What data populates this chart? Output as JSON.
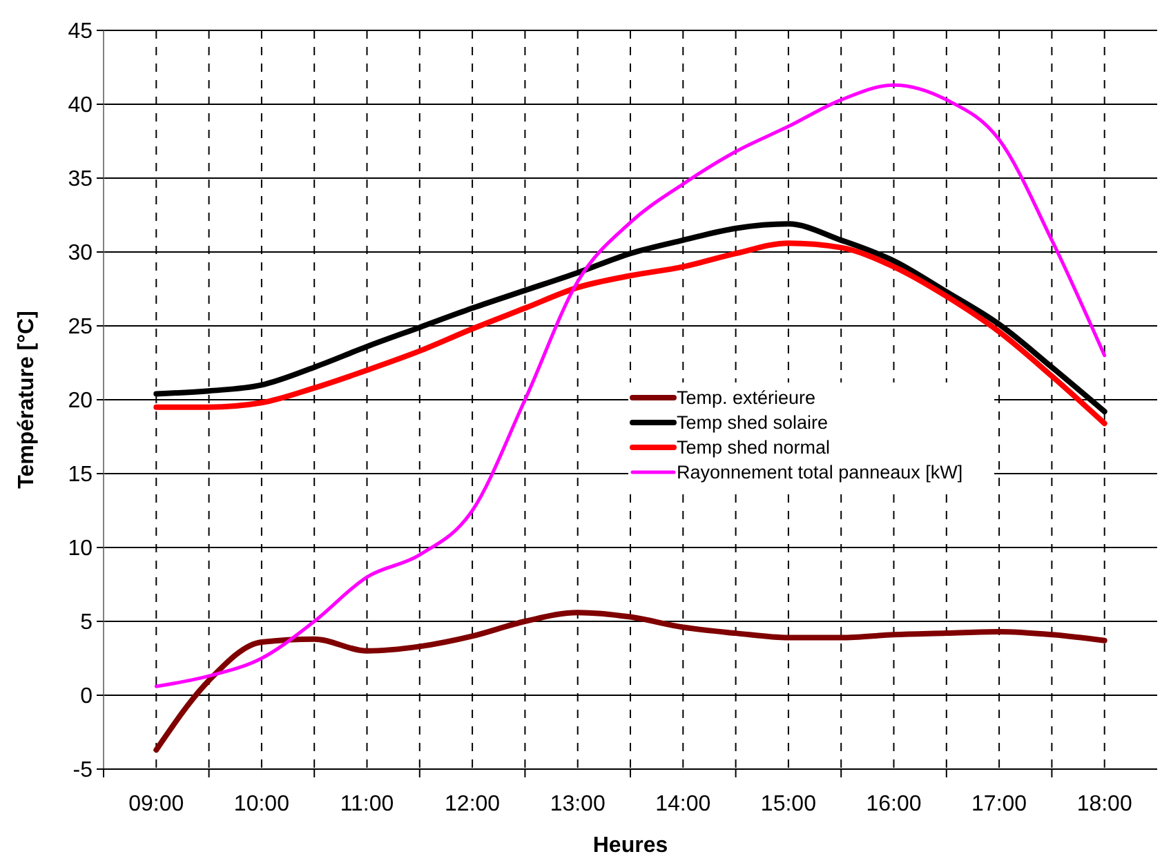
{
  "chart_data": {
    "type": "line",
    "xlabel": "Heures",
    "ylabel": "Température [°C]",
    "x": [
      9,
      9.5,
      10,
      10.5,
      11,
      11.5,
      12,
      12.5,
      13,
      13.5,
      14,
      14.5,
      15,
      15.5,
      16,
      16.5,
      17,
      17.5,
      18
    ],
    "xlim": [
      8.5,
      18.5
    ],
    "xticks": [
      {
        "value": 9,
        "label": "09:00"
      },
      {
        "value": 9.5,
        "label": null
      },
      {
        "value": 10,
        "label": "10:00"
      },
      {
        "value": 10.5,
        "label": null
      },
      {
        "value": 11,
        "label": "11:00"
      },
      {
        "value": 11.5,
        "label": null
      },
      {
        "value": 12,
        "label": "12:00"
      },
      {
        "value": 12.5,
        "label": null
      },
      {
        "value": 13,
        "label": "13:00"
      },
      {
        "value": 13.5,
        "label": null
      },
      {
        "value": 14,
        "label": "14:00"
      },
      {
        "value": 14.5,
        "label": null
      },
      {
        "value": 15,
        "label": "15:00"
      },
      {
        "value": 15.5,
        "label": null
      },
      {
        "value": 16,
        "label": "16:00"
      },
      {
        "value": 16.5,
        "label": null
      },
      {
        "value": 17,
        "label": "17:00"
      },
      {
        "value": 17.5,
        "label": null
      },
      {
        "value": 18,
        "label": "18:00"
      }
    ],
    "ylim": [
      -5,
      45
    ],
    "yticks": [
      -5,
      0,
      5,
      10,
      15,
      20,
      25,
      30,
      35,
      40,
      45
    ],
    "grid": true,
    "legend": "right",
    "marker": "none",
    "line_style": "solid",
    "series": [
      {
        "name": "Temp. extérieure",
        "color": "#800000",
        "values": [
          -3.7,
          1.0,
          3.6,
          3.8,
          3.0,
          3.3,
          4.0,
          5.0,
          5.6,
          5.3,
          4.6,
          4.2,
          3.9,
          3.9,
          4.1,
          4.2,
          4.3,
          4.1,
          3.7
        ]
      },
      {
        "name": "Temp shed solaire",
        "color": "#000000",
        "values": [
          20.4,
          20.6,
          21.0,
          22.2,
          23.6,
          24.9,
          26.2,
          27.4,
          28.6,
          29.9,
          30.8,
          31.6,
          31.9,
          30.8,
          29.4,
          27.3,
          25.1,
          22.2,
          19.2
        ]
      },
      {
        "name": "Temp shed normal",
        "color": "#ff0000",
        "values": [
          19.5,
          19.5,
          19.8,
          20.8,
          22.0,
          23.3,
          24.8,
          26.2,
          27.6,
          28.4,
          29.0,
          29.9,
          30.6,
          30.3,
          29.0,
          27.0,
          24.6,
          21.6,
          18.4
        ]
      },
      {
        "name": "Rayonnement total panneaux [kW]",
        "color": "#ff00ff",
        "values": [
          0.6,
          1.3,
          2.5,
          5.0,
          8.0,
          9.5,
          12.5,
          20.0,
          28.0,
          32.0,
          34.6,
          36.8,
          38.5,
          40.3,
          41.3,
          40.3,
          37.6,
          30.8,
          23.0
        ]
      }
    ]
  }
}
